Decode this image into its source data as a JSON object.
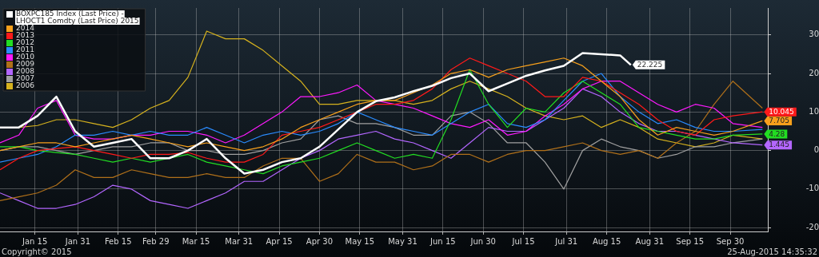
{
  "chart_data": {
    "type": "line",
    "legend": "top left",
    "grid": true,
    "marker": "none",
    "line_style": "solid",
    "x": [
      "--01-02",
      "--01-09",
      "--01-16",
      "--01-23",
      "--01-30",
      "--02-06",
      "--02-13",
      "--02-20",
      "--02-27",
      "--03-05",
      "--03-12",
      "--03-19",
      "--03-26",
      "--04-02",
      "--04-09",
      "--04-16",
      "--04-23",
      "--04-30",
      "--05-07",
      "--05-14",
      "--05-21",
      "--05-28",
      "--06-04",
      "--06-11",
      "--06-18",
      "--06-25",
      "--07-02",
      "--07-09",
      "--07-16",
      "--07-23",
      "--07-30",
      "--08-06",
      "--08-13",
      "--08-20",
      "--08-27",
      "--09-03",
      "--09-10",
      "--09-17",
      "--09-24",
      "--10-01",
      "--10-12"
    ],
    "xlim": [
      "--01-02",
      "--10-14"
    ],
    "xticks": [
      {
        "value": "--01-15",
        "label": "Jan 15"
      },
      {
        "value": "--01-31",
        "label": "Jan 31"
      },
      {
        "value": "--02-15",
        "label": "Feb 15"
      },
      {
        "value": "--02-29",
        "label": "Feb 29"
      },
      {
        "value": "--03-15",
        "label": "Mar 15"
      },
      {
        "value": "--03-31",
        "label": "Mar 31"
      },
      {
        "value": "--04-15",
        "label": "Apr 15"
      },
      {
        "value": "--04-30",
        "label": "Apr 30"
      },
      {
        "value": "--05-15",
        "label": "May 15"
      },
      {
        "value": "--05-31",
        "label": "May 31"
      },
      {
        "value": "--06-15",
        "label": "Jun 15"
      },
      {
        "value": "--06-30",
        "label": "Jun 30"
      },
      {
        "value": "--07-15",
        "label": "Jul 15"
      },
      {
        "value": "--07-31",
        "label": "Jul 31"
      },
      {
        "value": "--08-15",
        "label": "Aug 15"
      },
      {
        "value": "--08-31",
        "label": "Aug 31"
      },
      {
        "value": "--09-15",
        "label": "Sep 15"
      },
      {
        "value": "--09-30",
        "label": "Sep 30"
      }
    ],
    "ylim": [
      -21,
      37
    ],
    "yticks": [
      -20,
      -10,
      0,
      10,
      20,
      30
    ],
    "annotations": [
      "Copyright© 2015",
      "25-Aug-2015 14:35:32"
    ],
    "series": [
      {
        "name": "BOXPC185 Index (Last Price) - LHOCT1 Comdty (Last Price) 2015",
        "color": "#ffffff",
        "x": [
          "--01-02",
          "--01-09",
          "--01-16",
          "--01-23",
          "--01-30",
          "--02-06",
          "--02-13",
          "--02-20",
          "--02-27",
          "--03-05",
          "--03-12",
          "--03-19",
          "--03-26",
          "--04-02",
          "--04-09",
          "--04-16",
          "--04-23",
          "--04-30",
          "--05-07",
          "--05-14",
          "--05-21",
          "--05-28",
          "--06-04",
          "--06-11",
          "--06-18",
          "--06-25",
          "--07-02",
          "--07-09",
          "--07-16",
          "--07-23",
          "--07-30",
          "--08-06",
          "--08-13",
          "--08-20",
          "--08-24"
        ],
        "values": [
          6,
          6,
          9,
          14,
          5,
          1,
          2,
          3,
          -2,
          -2,
          0,
          3,
          -2,
          -6,
          -5,
          -3,
          -2,
          1,
          5.5,
          10,
          12.8,
          13.8,
          15.4,
          16.8,
          18.8,
          20,
          15.4,
          17.4,
          19.4,
          20.8,
          22,
          25.3,
          25,
          24.7,
          22.225
        ],
        "value_labels": [
          null,
          null,
          null,
          null,
          null,
          null,
          null,
          null,
          null,
          null,
          null,
          null,
          null,
          null,
          null,
          null,
          null,
          null,
          null,
          null,
          null,
          null,
          null,
          null,
          null,
          null,
          null,
          null,
          null,
          null,
          null,
          null,
          null,
          null,
          "22.225"
        ]
      },
      {
        "name": "2014",
        "color": "#f7a01c",
        "values": [
          0,
          1,
          2,
          2,
          1,
          2,
          3,
          4,
          3,
          2,
          1,
          2,
          1,
          0,
          1,
          3,
          6,
          8,
          10,
          12,
          13,
          13,
          15,
          17,
          20,
          21,
          19,
          21,
          22,
          23,
          24,
          22,
          18,
          14,
          8,
          4,
          6,
          5,
          4,
          5,
          7.705
        ],
        "value_labels": [
          null,
          null,
          null,
          null,
          null,
          null,
          null,
          null,
          null,
          null,
          null,
          null,
          null,
          null,
          null,
          null,
          null,
          null,
          null,
          null,
          null,
          null,
          null,
          null,
          null,
          null,
          null,
          null,
          null,
          null,
          null,
          null,
          null,
          null,
          null,
          null,
          null,
          null,
          null,
          null,
          "7.705"
        ]
      },
      {
        "name": "2013",
        "color": "#ff1a1a",
        "values": [
          -5,
          -2,
          0,
          0.5,
          1,
          0,
          -1,
          -2,
          -1,
          -1,
          -0.5,
          -2,
          -3,
          -3,
          -1,
          4,
          5,
          6,
          8,
          10,
          12,
          12,
          13,
          16,
          21,
          24,
          22,
          20,
          18,
          14,
          14,
          19,
          18,
          15,
          12,
          8,
          5,
          4,
          8,
          9,
          10.045
        ],
        "value_labels": [
          null,
          null,
          null,
          null,
          null,
          null,
          null,
          null,
          null,
          null,
          null,
          null,
          null,
          null,
          null,
          null,
          null,
          null,
          null,
          null,
          null,
          null,
          null,
          null,
          null,
          null,
          null,
          null,
          null,
          null,
          null,
          null,
          null,
          null,
          null,
          null,
          null,
          null,
          null,
          null,
          "10.045"
        ]
      },
      {
        "name": "2012",
        "color": "#22dd22",
        "values": [
          1,
          1,
          0,
          -0.5,
          -1,
          -2,
          -3,
          -2,
          -3,
          -2,
          -1,
          -3,
          -4,
          -5,
          -6,
          -4,
          -3,
          -2,
          0,
          2,
          0,
          -2,
          -1,
          -2,
          8,
          21,
          12,
          6,
          11,
          10,
          15,
          18,
          15,
          12,
          6,
          5,
          4,
          3,
          3,
          4,
          4.28
        ],
        "value_labels": [
          null,
          null,
          null,
          null,
          null,
          null,
          null,
          null,
          null,
          null,
          null,
          null,
          null,
          null,
          null,
          null,
          null,
          null,
          null,
          null,
          null,
          null,
          null,
          null,
          null,
          null,
          null,
          null,
          null,
          null,
          null,
          null,
          null,
          null,
          null,
          null,
          null,
          null,
          null,
          null,
          "4.28"
        ]
      },
      {
        "name": "2011",
        "color": "#2a8cff",
        "values": [
          -3,
          -2,
          -1,
          1,
          4,
          4,
          5,
          4,
          5,
          4,
          4,
          6,
          4,
          2,
          4,
          5,
          4,
          5,
          7,
          10,
          8,
          6,
          5,
          4,
          7,
          10,
          12,
          7,
          6,
          8,
          13,
          18,
          20,
          14,
          10,
          7,
          8,
          6,
          5,
          5,
          5.5
        ]
      },
      {
        "name": "2010",
        "color": "#ff1aff",
        "values": [
          2,
          4,
          11,
          13,
          4,
          3,
          3,
          4,
          4,
          5,
          5,
          4,
          2,
          4,
          7,
          10,
          14,
          14,
          15,
          17,
          13,
          12,
          11,
          9,
          7,
          6,
          8,
          4,
          5,
          9,
          12,
          16,
          18,
          18,
          15,
          12,
          10,
          12,
          11,
          7,
          6
        ]
      },
      {
        "name": "2009",
        "color": "#b0701a",
        "values": [
          -13,
          -12,
          -11,
          -9,
          -5,
          -7,
          -7,
          -5,
          -6,
          -7,
          -7,
          -6,
          -7,
          -7,
          -4,
          -2,
          -2,
          -8,
          -6,
          -1,
          -3,
          -3,
          -5,
          -4,
          -1,
          -1,
          -3,
          -1,
          0,
          0,
          1,
          2,
          0,
          -1,
          0,
          -2,
          2,
          5,
          12,
          18,
          11
        ]
      },
      {
        "name": "2008",
        "color": "#b366ff",
        "values": [
          -11,
          -13,
          -15,
          -15,
          -14,
          -12,
          -9,
          -10,
          -13,
          -14,
          -15,
          -13,
          -11,
          -8,
          -8,
          -5,
          -2,
          0,
          3,
          4,
          5,
          3,
          2,
          0,
          -2,
          2,
          6,
          5,
          5,
          8,
          11,
          16,
          14,
          10,
          7,
          5,
          5,
          4,
          3,
          2,
          1.445
        ],
        "value_labels": [
          null,
          null,
          null,
          null,
          null,
          null,
          null,
          null,
          null,
          null,
          null,
          null,
          null,
          null,
          null,
          null,
          null,
          null,
          null,
          null,
          null,
          null,
          null,
          null,
          null,
          null,
          null,
          null,
          null,
          null,
          null,
          null,
          null,
          null,
          null,
          null,
          null,
          null,
          null,
          null,
          "1.445"
        ]
      },
      {
        "name": "2007",
        "color": "#a0a0a0",
        "values": [
          0,
          1,
          1,
          0,
          -1,
          0,
          1,
          1,
          2,
          2,
          0,
          0,
          -1,
          -1,
          0,
          2,
          3,
          8,
          9,
          7,
          7,
          6,
          4,
          4,
          9,
          10,
          7,
          2,
          2,
          -3,
          -10,
          0,
          3,
          1,
          0,
          -2,
          -1,
          1,
          1,
          2,
          3
        ]
      },
      {
        "name": "2006",
        "color": "#d6b21e",
        "values": [
          6,
          6,
          6.5,
          8,
          8,
          7,
          6,
          8,
          11,
          13,
          19,
          31,
          29,
          29,
          26,
          22,
          18,
          12,
          12,
          13,
          13,
          13,
          12,
          13,
          16,
          18,
          16,
          14,
          11,
          9,
          8,
          9,
          6,
          8,
          6,
          3,
          2,
          1,
          2,
          4,
          3
        ]
      }
    ]
  }
}
